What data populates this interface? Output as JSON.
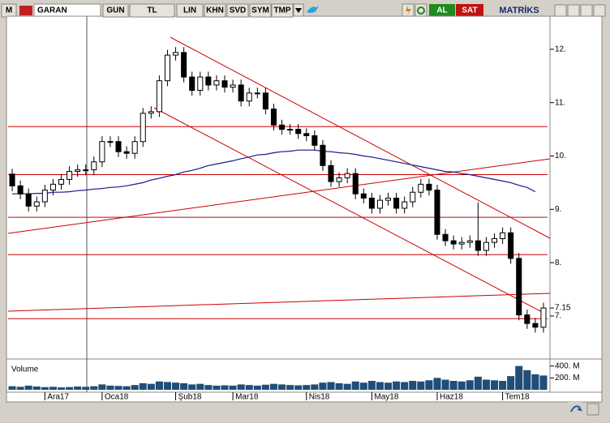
{
  "toolbar": {
    "logo": "M",
    "symbol": "GARAN",
    "buttons": [
      "GUN",
      "TL",
      "LIN",
      "KHN",
      "SVD",
      "SYM",
      "TMP"
    ],
    "buy": "AL",
    "sell": "SAT",
    "brand": "MATRİKS"
  },
  "chart_data": {
    "type": "candlestick",
    "categories": [
      null,
      null,
      null,
      null,
      "Ara17",
      null,
      null,
      null,
      null,
      null,
      null,
      "Oca18",
      null,
      null,
      null,
      null,
      null,
      null,
      null,
      null,
      "Şub18",
      null,
      null,
      null,
      null,
      null,
      null,
      "Mar18",
      null,
      null,
      null,
      null,
      null,
      null,
      null,
      null,
      "Nis18",
      null,
      null,
      null,
      null,
      null,
      null,
      null,
      "May18",
      null,
      null,
      null,
      null,
      null,
      null,
      null,
      "Haz18",
      null,
      null,
      null,
      null,
      null,
      null,
      null,
      "Tem18",
      null,
      null,
      null,
      null,
      null
    ],
    "open": [
      9.66,
      9.44,
      9.29,
      9.06,
      9.14,
      9.36,
      9.47,
      9.56,
      9.71,
      9.74,
      9.74,
      9.89,
      10.27,
      10.27,
      10.08,
      10.05,
      10.27,
      10.8,
      10.83,
      11.41,
      11.89,
      11.94,
      11.48,
      11.23,
      11.48,
      11.33,
      11.41,
      11.29,
      11.33,
      11.03,
      11.18,
      11.18,
      10.88,
      10.58,
      10.5,
      10.5,
      10.42,
      10.38,
      10.2,
      9.82,
      9.52,
      9.59,
      9.67,
      9.29,
      9.21,
      9.02,
      9.17,
      9.21,
      9.02,
      9.14,
      9.32,
      9.47,
      9.36,
      8.53,
      8.41,
      8.35,
      8.38,
      8.41,
      8.23,
      8.38,
      8.45,
      8.56,
      8.08,
      7.02,
      6.86,
      6.79
    ],
    "high": [
      9.76,
      9.54,
      9.39,
      9.24,
      9.46,
      9.57,
      9.66,
      9.81,
      9.84,
      9.84,
      9.99,
      10.37,
      10.37,
      10.37,
      10.18,
      10.37,
      10.9,
      10.93,
      11.51,
      11.99,
      12.04,
      12.04,
      11.58,
      11.58,
      11.58,
      11.51,
      11.51,
      11.43,
      11.43,
      11.28,
      11.28,
      11.28,
      10.98,
      10.68,
      10.6,
      10.6,
      10.52,
      10.48,
      10.3,
      9.92,
      9.69,
      9.77,
      9.77,
      9.39,
      9.31,
      9.27,
      9.31,
      9.31,
      9.24,
      9.42,
      9.57,
      9.57,
      9.46,
      8.63,
      8.51,
      8.48,
      8.51,
      9.13,
      8.48,
      8.55,
      8.66,
      8.66,
      8.18,
      7.12,
      6.96,
      7.25
    ],
    "low": [
      9.34,
      9.19,
      8.96,
      8.96,
      9.04,
      9.26,
      9.37,
      9.46,
      9.61,
      9.64,
      9.64,
      9.79,
      10.17,
      9.98,
      9.95,
      9.95,
      10.17,
      10.7,
      10.73,
      11.31,
      11.79,
      11.38,
      11.13,
      11.13,
      11.23,
      11.23,
      11.19,
      11.19,
      10.93,
      10.93,
      11.08,
      10.78,
      10.48,
      10.4,
      10.4,
      10.32,
      10.28,
      10.1,
      9.72,
      9.42,
      9.42,
      9.49,
      9.19,
      9.11,
      8.92,
      8.92,
      9.07,
      8.92,
      8.92,
      9.04,
      9.22,
      9.26,
      8.43,
      8.31,
      8.25,
      8.25,
      8.28,
      8.13,
      8.13,
      8.28,
      8.35,
      7.98,
      6.92,
      6.76,
      6.69,
      6.69
    ],
    "close": [
      9.44,
      9.29,
      9.06,
      9.14,
      9.36,
      9.47,
      9.56,
      9.71,
      9.74,
      9.74,
      9.89,
      10.27,
      10.27,
      10.08,
      10.05,
      10.27,
      10.8,
      10.83,
      11.41,
      11.89,
      11.94,
      11.48,
      11.23,
      11.48,
      11.33,
      11.41,
      11.29,
      11.33,
      11.03,
      11.18,
      11.18,
      10.88,
      10.58,
      10.5,
      10.5,
      10.42,
      10.38,
      10.2,
      9.82,
      9.52,
      9.59,
      9.67,
      9.29,
      9.21,
      9.02,
      9.17,
      9.21,
      9.02,
      9.14,
      9.32,
      9.47,
      9.36,
      8.53,
      8.41,
      8.35,
      8.38,
      8.41,
      8.23,
      8.38,
      8.45,
      8.56,
      8.08,
      7.02,
      6.86,
      6.79,
      7.15
    ],
    "up_color": "#ffffff",
    "down_color": "#000000",
    "ylim": [
      6.24,
      12.62
    ],
    "yticks": [
      {
        "value": 12,
        "label": "12."
      },
      {
        "value": 11,
        "label": "11."
      },
      {
        "value": 10,
        "label": "10."
      },
      {
        "value": 9,
        "label": "9."
      },
      {
        "value": 8,
        "label": "8."
      },
      {
        "value": 7,
        "label": "7."
      }
    ],
    "last_price": 7.15,
    "levels": [
      10.55,
      9.65,
      8.85,
      8.15,
      6.95
    ],
    "level_color": "#cc0000",
    "ma": {
      "color": "#1a1a8c",
      "values": [
        9.29,
        9.29,
        9.29,
        9.3,
        9.3,
        9.32,
        9.32,
        9.33,
        9.35,
        9.36,
        9.38,
        9.39,
        9.41,
        9.42,
        9.44,
        9.47,
        9.5,
        9.55,
        9.58,
        9.62,
        9.65,
        9.7,
        9.73,
        9.77,
        9.82,
        9.85,
        9.88,
        9.91,
        9.95,
        9.98,
        10.02,
        10.03,
        10.06,
        10.08,
        10.09,
        10.11,
        10.11,
        10.11,
        10.09,
        10.08,
        10.06,
        10.05,
        10.03,
        10.0,
        9.98,
        9.95,
        9.92,
        9.89,
        9.86,
        9.83,
        9.8,
        9.77,
        9.74,
        9.71,
        9.7,
        9.67,
        9.65,
        9.62,
        9.59,
        9.56,
        9.53,
        9.5,
        9.45,
        9.41,
        9.33,
        null
      ]
    },
    "volume": {
      "name": "Volume",
      "color": "#1f4e79",
      "ylim": [
        0,
        450
      ],
      "yticks": [
        {
          "value": 400,
          "label": "400. M"
        },
        {
          "value": 200,
          "label": "200. M"
        }
      ],
      "values": [
        60,
        50,
        70,
        55,
        45,
        50,
        40,
        45,
        55,
        50,
        60,
        90,
        70,
        65,
        60,
        80,
        110,
        100,
        140,
        130,
        120,
        110,
        90,
        100,
        80,
        70,
        75,
        70,
        90,
        80,
        70,
        85,
        100,
        90,
        80,
        75,
        80,
        90,
        120,
        130,
        110,
        100,
        140,
        120,
        150,
        130,
        120,
        140,
        130,
        150,
        140,
        160,
        200,
        170,
        150,
        140,
        160,
        220,
        170,
        160,
        150,
        230,
        400,
        330,
        260,
        240
      ]
    }
  }
}
